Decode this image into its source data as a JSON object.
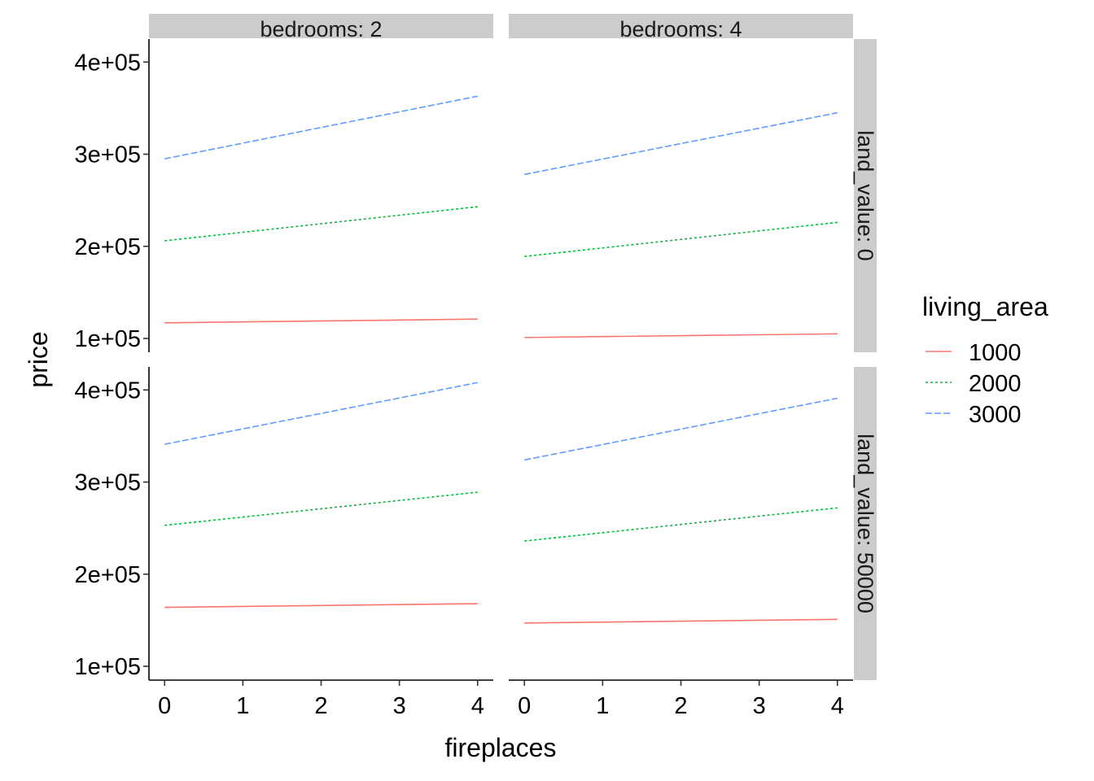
{
  "chart_data": {
    "type": "line",
    "xlabel": "fireplaces",
    "ylabel": "price",
    "x": [
      0,
      1,
      2,
      3,
      4
    ],
    "x_ticks": [
      "0",
      "1",
      "2",
      "3",
      "4"
    ],
    "y_ticks": [
      {
        "value": 100000,
        "label": "1e+05"
      },
      {
        "value": 200000,
        "label": "2e+05"
      },
      {
        "value": 300000,
        "label": "3e+05"
      },
      {
        "value": 400000,
        "label": "4e+05"
      }
    ],
    "xlim": [
      -0.2,
      4.2
    ],
    "ylim": [
      85000,
      425000
    ],
    "grid": false,
    "facet_cols": [
      "bedrooms: 2",
      "bedrooms: 4"
    ],
    "facet_rows": [
      "land_value: 0",
      "land_value: 50000"
    ],
    "legend": {
      "title": "living_area",
      "position": "right",
      "entries": [
        {
          "label": "1000",
          "color": "#F8766D",
          "dash": "solid"
        },
        {
          "label": "2000",
          "color": "#00BA38",
          "dash": "dotted"
        },
        {
          "label": "3000",
          "color": "#619CFF",
          "dash": "dashed"
        }
      ]
    },
    "panels": [
      {
        "col": 0,
        "row": 0,
        "series": [
          {
            "name": "1000",
            "start": 117000,
            "end": 121000
          },
          {
            "name": "2000",
            "start": 206000,
            "end": 243000
          },
          {
            "name": "3000",
            "start": 295000,
            "end": 363000
          }
        ]
      },
      {
        "col": 1,
        "row": 0,
        "series": [
          {
            "name": "1000",
            "start": 101000,
            "end": 105000
          },
          {
            "name": "2000",
            "start": 189000,
            "end": 226000
          },
          {
            "name": "3000",
            "start": 278000,
            "end": 345000
          }
        ]
      },
      {
        "col": 0,
        "row": 1,
        "series": [
          {
            "name": "1000",
            "start": 164000,
            "end": 168000
          },
          {
            "name": "2000",
            "start": 253000,
            "end": 289000
          },
          {
            "name": "3000",
            "start": 341000,
            "end": 408000
          }
        ]
      },
      {
        "col": 1,
        "row": 1,
        "series": [
          {
            "name": "1000",
            "start": 147000,
            "end": 151000
          },
          {
            "name": "2000",
            "start": 236000,
            "end": 272000
          },
          {
            "name": "3000",
            "start": 324000,
            "end": 391000
          }
        ]
      }
    ]
  }
}
